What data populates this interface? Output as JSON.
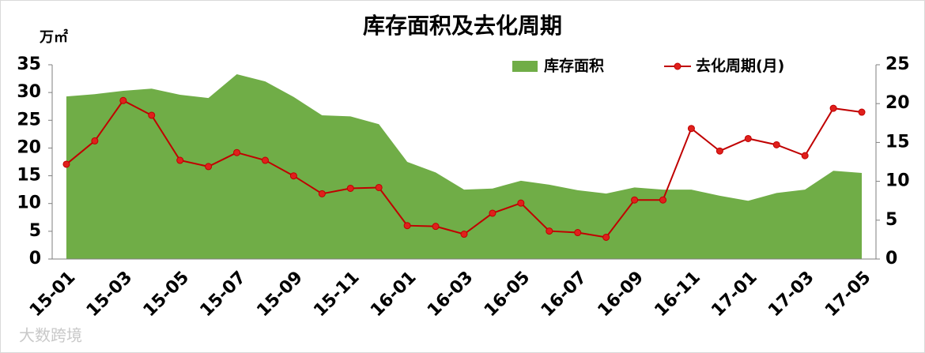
{
  "chart_data": {
    "type": "combo",
    "title": "库存面积及去化周期",
    "y_label": "万㎡",
    "watermark": "大数跨境",
    "categories": [
      "15-01",
      null,
      "15-03",
      null,
      "15-05",
      null,
      "15-07",
      null,
      "15-09",
      null,
      "15-11",
      null,
      "16-01",
      null,
      "16-03",
      null,
      "16-05",
      null,
      "16-07",
      null,
      "16-09",
      null,
      "16-11",
      null,
      "17-01",
      null,
      "17-03",
      null,
      "17-05"
    ],
    "series": [
      {
        "name": "库存面积",
        "type": "area",
        "color": "#70ad47",
        "axis": "y",
        "values": [
          29.3,
          29.7,
          30.3,
          30.7,
          29.6,
          29.0,
          33.3,
          32.0,
          29.2,
          25.9,
          25.7,
          24.3,
          17.5,
          15.6,
          12.5,
          12.7,
          14.1,
          13.4,
          12.4,
          11.8,
          12.9,
          12.5,
          12.5,
          11.4,
          10.5,
          11.9,
          12.5,
          15.9,
          15.5
        ]
      },
      {
        "name": "去化周期(月)",
        "type": "line",
        "color": "#c00000",
        "axis": "y2",
        "values": [
          12.2,
          15.2,
          20.4,
          18.5,
          12.7,
          11.9,
          13.7,
          12.7,
          10.7,
          8.4,
          9.1,
          9.2,
          4.3,
          4.2,
          3.2,
          5.9,
          7.2,
          3.6,
          3.4,
          2.8,
          7.6,
          7.6,
          16.8,
          13.9,
          15.5,
          14.7,
          13.3,
          19.4,
          18.9
        ]
      }
    ],
    "ylim": [
      0,
      35
    ],
    "yticks": [
      0,
      5,
      10,
      15,
      20,
      25,
      30,
      35
    ],
    "y2lim": [
      0,
      25
    ],
    "y2ticks": [
      0,
      5,
      10,
      15,
      20,
      25
    ],
    "grid": false,
    "legend": "top-right"
  }
}
